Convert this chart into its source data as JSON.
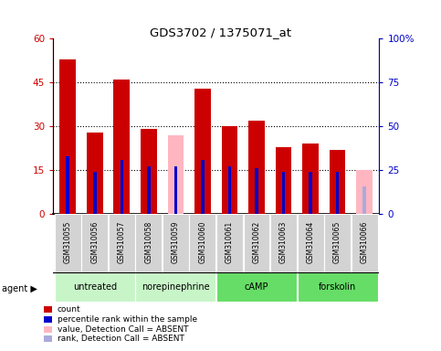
{
  "title": "GDS3702 / 1375071_at",
  "samples": [
    "GSM310055",
    "GSM310056",
    "GSM310057",
    "GSM310058",
    "GSM310059",
    "GSM310060",
    "GSM310061",
    "GSM310062",
    "GSM310063",
    "GSM310064",
    "GSM310065",
    "GSM310066"
  ],
  "count_values": [
    53,
    28,
    46,
    29,
    null,
    43,
    30,
    32,
    23,
    24,
    22,
    null
  ],
  "count_absent": [
    null,
    null,
    null,
    null,
    27,
    null,
    null,
    null,
    null,
    null,
    null,
    15
  ],
  "rank_values": [
    33,
    24,
    31,
    27,
    27,
    31,
    27,
    26,
    24,
    24,
    24,
    null
  ],
  "rank_absent": [
    null,
    null,
    null,
    null,
    null,
    null,
    null,
    null,
    null,
    null,
    null,
    16
  ],
  "agents": [
    {
      "label": "untreated",
      "start": 0,
      "end": 3,
      "color": "#c8f5c8"
    },
    {
      "label": "norepinephrine",
      "start": 3,
      "end": 6,
      "color": "#c8f5c8"
    },
    {
      "label": "cAMP",
      "start": 6,
      "end": 9,
      "color": "#66dd66"
    },
    {
      "label": "forskolin",
      "start": 9,
      "end": 12,
      "color": "#66dd66"
    }
  ],
  "ylim_left": [
    0,
    60
  ],
  "ylim_right": [
    0,
    100
  ],
  "yticks_left": [
    0,
    15,
    30,
    45,
    60
  ],
  "yticks_right": [
    0,
    25,
    50,
    75,
    100
  ],
  "color_red": "#CC0000",
  "color_blue": "#0000CC",
  "color_pink": "#FFB6C1",
  "color_blue_absent": "#AAAADD",
  "sample_bg": "#D3D3D3",
  "bar_width": 0.6,
  "rank_bar_width": 0.12
}
